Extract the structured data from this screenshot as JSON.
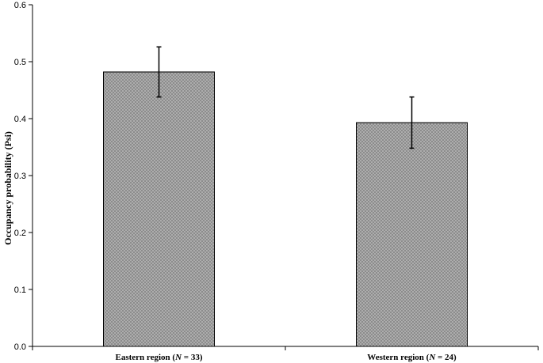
{
  "chart_data": {
    "type": "bar",
    "title": "",
    "xlabel": "",
    "ylabel": "Occupancy  probability  (Psi)",
    "ylim": [
      0,
      0.6
    ],
    "yticks": [
      "0.0",
      "0.1",
      "0.2",
      "0.3",
      "0.4",
      "0.5",
      "0.6"
    ],
    "grid": false,
    "legend": "none",
    "bar_color": "#8c8c8c",
    "categories": [
      {
        "prefix": "Eastern region (",
        "italic": "N",
        "suffix": " = 33)"
      },
      {
        "prefix": "Western region (",
        "italic": "N",
        "suffix": " = 24)"
      }
    ],
    "values": [
      0.482,
      0.393
    ],
    "error": [
      0.044,
      0.045
    ]
  }
}
